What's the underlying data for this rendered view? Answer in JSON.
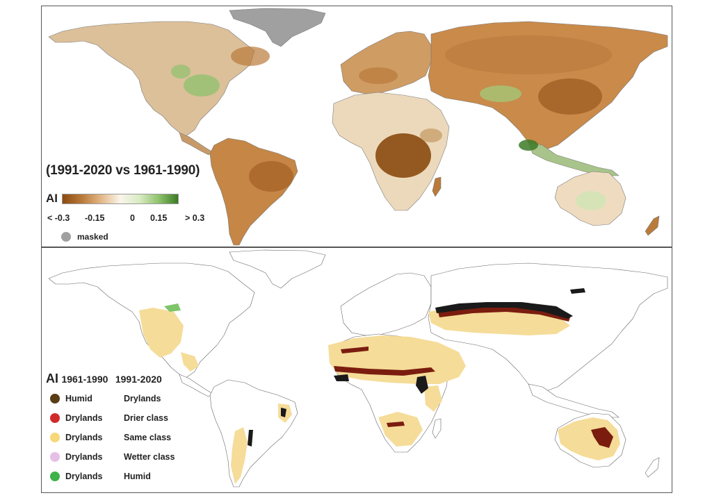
{
  "top_panel": {
    "title": "(1991-2020 vs 1961-1990)",
    "ai_label": "AI",
    "ticks": [
      "< -0.3",
      "-0.15",
      "0",
      "0.15",
      "> 0.3"
    ],
    "masked_label": "masked",
    "colors": {
      "strong_drier": "#8b4a10",
      "drier": "#b97a3a",
      "slight_drier": "#e2b785",
      "neutral": "#faf5ec",
      "slight_wetter": "#d8ebc2",
      "wetter": "#8fc26c",
      "strong_wetter": "#3d7a26",
      "masked": "#a0a0a0"
    }
  },
  "bottom_panel": {
    "ai_label": "AI",
    "period1": "1961-1990",
    "period2": "1991-2020",
    "rows": [
      {
        "c1": "Humid",
        "c2": "Drylands",
        "color": "#5a3d14"
      },
      {
        "c1": "Drylands",
        "c2": "Drier class",
        "color": "#d12a2a"
      },
      {
        "c1": "Drylands",
        "c2": "Same class",
        "color": "#f7d77a"
      },
      {
        "c1": "Drylands",
        "c2": "Wetter class",
        "color": "#e6bfe6"
      },
      {
        "c1": "Drylands",
        "c2": "Humid",
        "color": "#3fb24a"
      }
    ],
    "map_colors": {
      "same": "#f5dc98",
      "drier": "#7a1d0f",
      "humid_to_dry": "#1a1a1a",
      "dry_to_humid": "#7ec46a"
    }
  }
}
